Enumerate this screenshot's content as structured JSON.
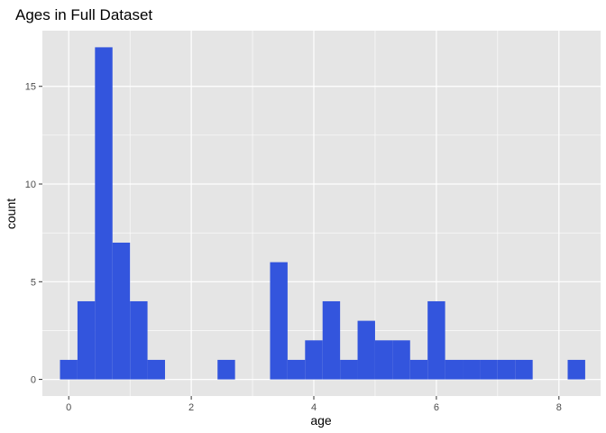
{
  "chart_data": {
    "type": "bar",
    "subtype": "histogram",
    "title": "Ages in Full Dataset",
    "xlabel": "age",
    "ylabel": "count",
    "xlim": [
      -0.43,
      8.68
    ],
    "ylim": [
      -0.85,
      17.85
    ],
    "x_ticks": [
      0,
      2,
      4,
      6,
      8
    ],
    "y_ticks": [
      0,
      5,
      10,
      15
    ],
    "x_tick_labels": [
      "0",
      "2",
      "4",
      "6",
      "8"
    ],
    "y_tick_labels": [
      "0",
      "5",
      "10",
      "15"
    ],
    "bin_width": 0.2857,
    "bin_centers": [
      0,
      0.2857,
      0.5714,
      0.8571,
      1.1429,
      1.4286,
      1.7143,
      2.0,
      2.2857,
      2.5714,
      2.8571,
      3.1429,
      3.4286,
      3.7143,
      4.0,
      4.2857,
      4.5714,
      4.8571,
      5.1429,
      5.4286,
      5.7143,
      6.0,
      6.2857,
      6.5714,
      6.8571,
      7.1429,
      7.4286,
      7.7143,
      8.0,
      8.2857
    ],
    "values": [
      1,
      4,
      17,
      7,
      4,
      1,
      0,
      0,
      0,
      1,
      0,
      0,
      6,
      1,
      2,
      4,
      1,
      3,
      2,
      2,
      1,
      4,
      1,
      1,
      1,
      1,
      1,
      0,
      0,
      1
    ],
    "fill_color": "#3355DD",
    "panel_color": "#E5E5E5",
    "grid_color": "#FFFFFF",
    "grid": true,
    "legend": "none"
  }
}
